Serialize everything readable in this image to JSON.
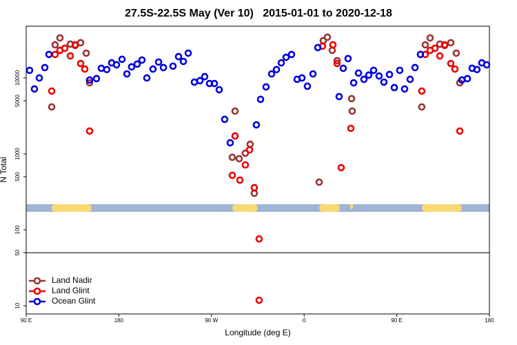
{
  "chart_data": {
    "type": "scatter",
    "title": "27.5S-22.5S May (Ver 10)   2015-01-01 to 2020-12-18",
    "x_label": "Longitude (deg E)",
    "y_label": "N Total",
    "log_y": true,
    "xlim": [
      90,
      540
    ],
    "ylim": [
      7.8,
      48000
    ],
    "xticks": [
      {
        "value": 90,
        "label": "90 E"
      },
      {
        "value": 180,
        "label": "180"
      },
      {
        "value": 270,
        "label": "90 W"
      },
      {
        "value": 360,
        "label": "0"
      },
      {
        "value": 450,
        "label": "90 E"
      },
      {
        "value": 540,
        "label": "180"
      }
    ],
    "yticks": [
      10,
      50,
      100,
      500,
      1000,
      5000,
      10000
    ],
    "reference_line": 50,
    "legend": "bottom-left",
    "series": [
      {
        "name": "Land Nadir",
        "color": "#993333",
        "x": [
          114.8,
          118.1,
          122.8,
          132.9,
          137.6,
          142.9,
          148.3,
          151.6,
          292.9,
          290.2,
          296.9,
          302.9,
          307.6,
          311.6,
          374.6,
          378.6,
          382.6,
          387.3,
          392.0,
          406.1,
          406.7,
          474.3,
          477.7,
          482.4,
          491.8,
          496.5,
          502.5,
          507.8,
          511.2
        ],
        "values": [
          4150,
          27300,
          33700,
          27900,
          26800,
          29100,
          21200,
          8630,
          3660,
          902,
          864,
          1020,
          1340,
          303,
          424,
          31000,
          34400,
          23100,
          16900,
          5340,
          3660,
          4150,
          27300,
          33700,
          27900,
          26800,
          29100,
          21200,
          8630
        ]
      },
      {
        "name": "Land Glint",
        "color": "#ee0000",
        "x": [
          114.8,
          118.1,
          122.8,
          127.5,
          132.9,
          137.6,
          142.9,
          146.9,
          151.6,
          290.2,
          292.9,
          297.6,
          302.9,
          307.0,
          311.6,
          316.3,
          316.3,
          377.9,
          388.0,
          392.0,
          396.0,
          405.4,
          474.3,
          477.7,
          482.4,
          487.1,
          491.8,
          496.5,
          502.5,
          506.5,
          511.2
        ],
        "values": [
          6720,
          20400,
          23100,
          24600,
          19500,
          27300,
          15500,
          13100,
          2000,
          522,
          1720,
          451,
          716,
          1130,
          359,
          76,
          11.8,
          26200,
          27300,
          15500,
          658,
          2170,
          6720,
          20400,
          23100,
          24600,
          19500,
          27300,
          15500,
          13100,
          2000
        ]
      },
      {
        "name": "Ocean Glint",
        "color": "#0000dd",
        "x": [
          93.3,
          98.0,
          102.7,
          108.1,
          112.1,
          151.6,
          158.3,
          163.0,
          168.3,
          173.0,
          177.7,
          183.1,
          187.8,
          192.4,
          197.8,
          202.5,
          207.2,
          213.2,
          218.6,
          223.3,
          232.6,
          238.0,
          242.7,
          247.4,
          253.4,
          258.8,
          263.4,
          268.1,
          272.8,
          277.5,
          282.8,
          288.2,
          313.6,
          317.7,
          323.0,
          328.4,
          333.1,
          337.8,
          342.5,
          347.8,
          353.2,
          357.9,
          363.2,
          368.6,
          373.3,
          394.0,
          398.0,
          402.7,
          408.1,
          412.8,
          418.1,
          422.8,
          427.5,
          432.8,
          437.5,
          442.9,
          447.6,
          452.9,
          457.6,
          463.0,
          467.7,
          473.0,
          513.2,
          518.6,
          523.2,
          527.9,
          532.6,
          537.3
        ],
        "values": [
          12600,
          7160,
          10000,
          13700,
          20400,
          9390,
          9790,
          13400,
          12900,
          15800,
          14900,
          17600,
          11300,
          14000,
          15200,
          17200,
          10000,
          13100,
          16200,
          13700,
          14300,
          19100,
          16500,
          21200,
          8810,
          9200,
          10400,
          8450,
          8450,
          7000,
          2850,
          1400,
          2410,
          5230,
          7620,
          11300,
          12900,
          15800,
          18700,
          20400,
          9590,
          10000,
          7780,
          11300,
          25100,
          5680,
          13400,
          18000,
          8630,
          11600,
          9590,
          10900,
          12600,
          10600,
          8810,
          11100,
          7460,
          12600,
          7160,
          9590,
          13700,
          20400,
          9390,
          9790,
          13400,
          12900,
          15800,
          14900
        ]
      }
    ]
  }
}
